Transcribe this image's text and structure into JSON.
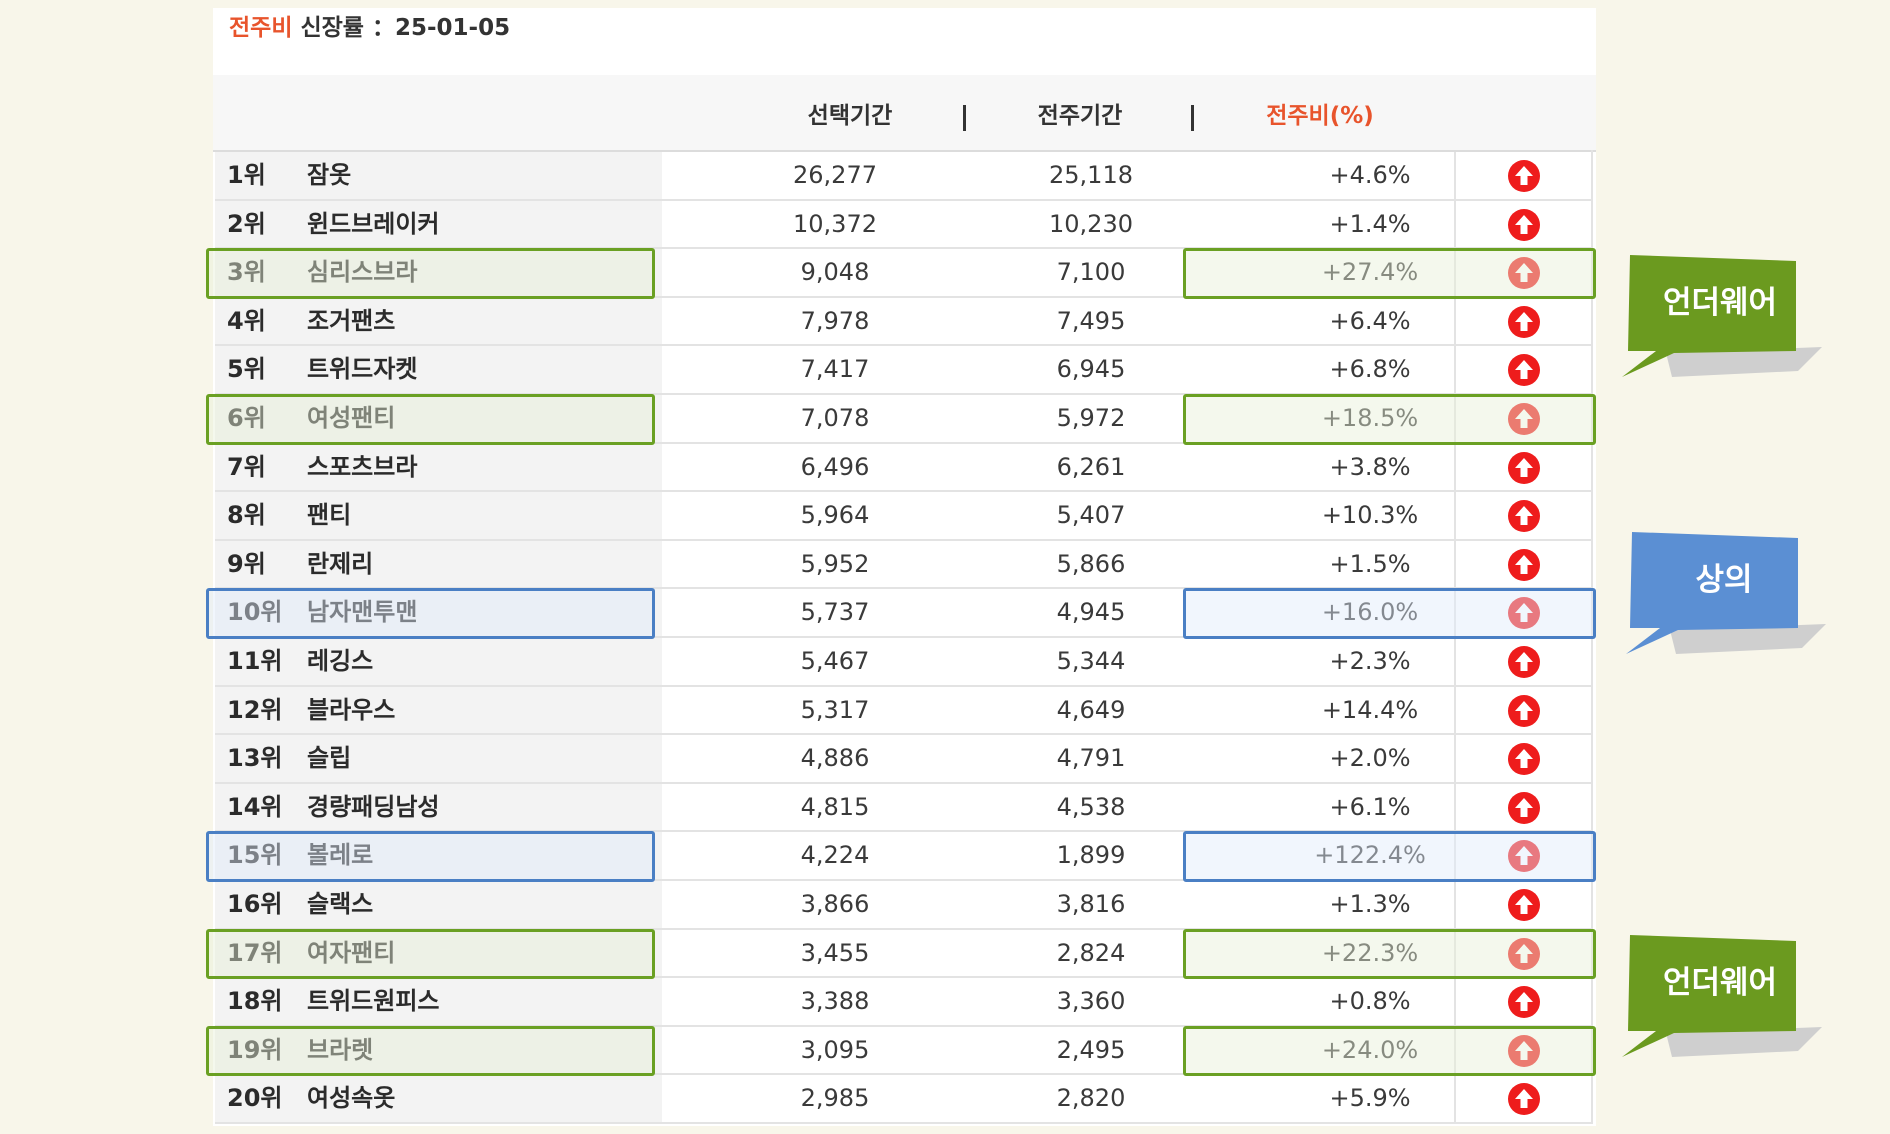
{
  "report": {
    "title_accent": "전주비",
    "title_rest": " 신장률 ：25-01-05"
  },
  "columns": {
    "selected": "선택기간",
    "sep1": "|",
    "previous": "전주기간",
    "sep2": "|",
    "ratio": "전주비(%)"
  },
  "rows": [
    {
      "rank": "1위",
      "keyword": "잠옷",
      "selected": "26,277",
      "previous": "25,118",
      "ratio": "+4.6%"
    },
    {
      "rank": "2위",
      "keyword": "윈드브레이커",
      "selected": "10,372",
      "previous": "10,230",
      "ratio": "+1.4%"
    },
    {
      "rank": "3위",
      "keyword": "심리스브라",
      "selected": "9,048",
      "previous": "7,100",
      "ratio": "+27.4%"
    },
    {
      "rank": "4위",
      "keyword": "조거팬츠",
      "selected": "7,978",
      "previous": "7,495",
      "ratio": "+6.4%"
    },
    {
      "rank": "5위",
      "keyword": "트위드자켓",
      "selected": "7,417",
      "previous": "6,945",
      "ratio": "+6.8%"
    },
    {
      "rank": "6위",
      "keyword": "여성팬티",
      "selected": "7,078",
      "previous": "5,972",
      "ratio": "+18.5%"
    },
    {
      "rank": "7위",
      "keyword": "스포츠브라",
      "selected": "6,496",
      "previous": "6,261",
      "ratio": "+3.8%"
    },
    {
      "rank": "8위",
      "keyword": "팬티",
      "selected": "5,964",
      "previous": "5,407",
      "ratio": "+10.3%"
    },
    {
      "rank": "9위",
      "keyword": "란제리",
      "selected": "5,952",
      "previous": "5,866",
      "ratio": "+1.5%"
    },
    {
      "rank": "10위",
      "keyword": "남자맨투맨",
      "selected": "5,737",
      "previous": "4,945",
      "ratio": "+16.0%"
    },
    {
      "rank": "11위",
      "keyword": "레깅스",
      "selected": "5,467",
      "previous": "5,344",
      "ratio": "+2.3%"
    },
    {
      "rank": "12위",
      "keyword": "블라우스",
      "selected": "5,317",
      "previous": "4,649",
      "ratio": "+14.4%"
    },
    {
      "rank": "13위",
      "keyword": "슬립",
      "selected": "4,886",
      "previous": "4,791",
      "ratio": "+2.0%"
    },
    {
      "rank": "14위",
      "keyword": "경량패딩남성",
      "selected": "4,815",
      "previous": "4,538",
      "ratio": "+6.1%"
    },
    {
      "rank": "15위",
      "keyword": "볼레로",
      "selected": "4,224",
      "previous": "1,899",
      "ratio": "+122.4%"
    },
    {
      "rank": "16위",
      "keyword": "슬랙스",
      "selected": "3,866",
      "previous": "3,816",
      "ratio": "+1.3%"
    },
    {
      "rank": "17위",
      "keyword": "여자팬티",
      "selected": "3,455",
      "previous": "2,824",
      "ratio": "+22.3%"
    },
    {
      "rank": "18위",
      "keyword": "트위드원피스",
      "selected": "3,388",
      "previous": "3,360",
      "ratio": "+0.8%"
    },
    {
      "rank": "19위",
      "keyword": "브라렛",
      "selected": "3,095",
      "previous": "2,495",
      "ratio": "+24.0%"
    },
    {
      "rank": "20위",
      "keyword": "여성속옷",
      "selected": "2,985",
      "previous": "2,820",
      "ratio": "+5.9%"
    }
  ],
  "trend_icon": "arrow-up-circle-icon",
  "highlights": {
    "green_rows": [
      3,
      6,
      17,
      19
    ],
    "blue_rows": [
      10,
      15
    ]
  },
  "callouts": [
    {
      "label": "언더웨어",
      "color": "#6b9a1f"
    },
    {
      "label": "상의",
      "color": "#5b8fd3"
    },
    {
      "label": "언더웨어",
      "color": "#6b9a1f"
    }
  ],
  "colors": {
    "accent": "#e8542c",
    "up_arrow": "#ee1c1c",
    "green_highlight": "#6aa023",
    "blue_highlight": "#4a7fc4"
  }
}
